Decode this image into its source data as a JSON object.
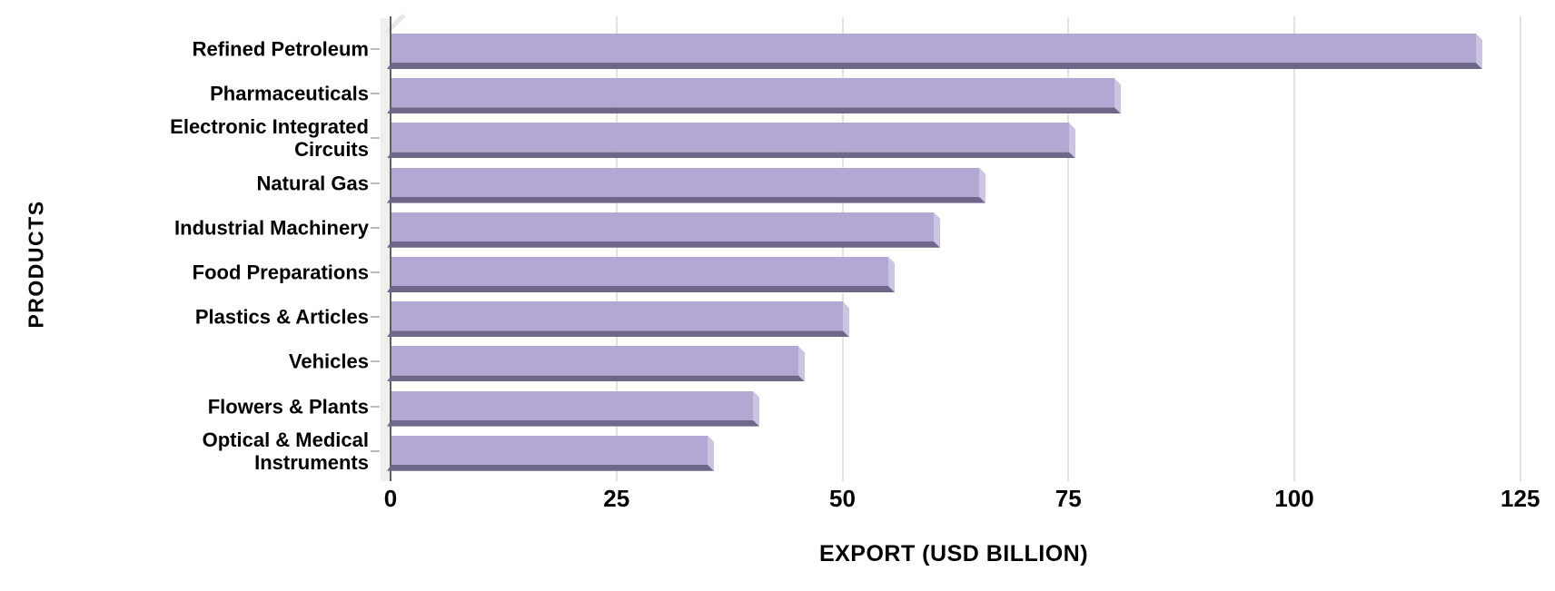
{
  "chart_data": {
    "type": "bar",
    "orientation": "horizontal",
    "categories": [
      "Refined Petroleum",
      "Pharmaceuticals",
      "Electronic Integrated Circuits",
      "Natural Gas",
      "Industrial Machinery",
      "Food Preparations",
      "Plastics & Articles",
      "Vehicles",
      "Flowers & Plants",
      "Optical & Medical Instruments"
    ],
    "values": [
      120,
      80,
      75,
      65,
      60,
      55,
      50,
      45,
      40,
      35
    ],
    "title": "",
    "xlabel": "EXPORT (USD BILLION)",
    "ylabel": "PRODUCTS",
    "xlim": [
      0,
      125
    ],
    "xticks": [
      0,
      25,
      50,
      75,
      100,
      125
    ],
    "grid": true,
    "legend": false
  },
  "colors": {
    "bar_face": "#b2a8d3",
    "bar_end_cap": "#ccc5e1",
    "bar_bottom_shade": "#6f6789",
    "axis_wall": "#f1efee",
    "wall_bevel": "#e9e7e6",
    "axis_line": "#5f5f5f",
    "gridline": "#e2e2e2",
    "y_tick": "#bbbbbb",
    "text": "#000000",
    "background": "#ffffff"
  }
}
